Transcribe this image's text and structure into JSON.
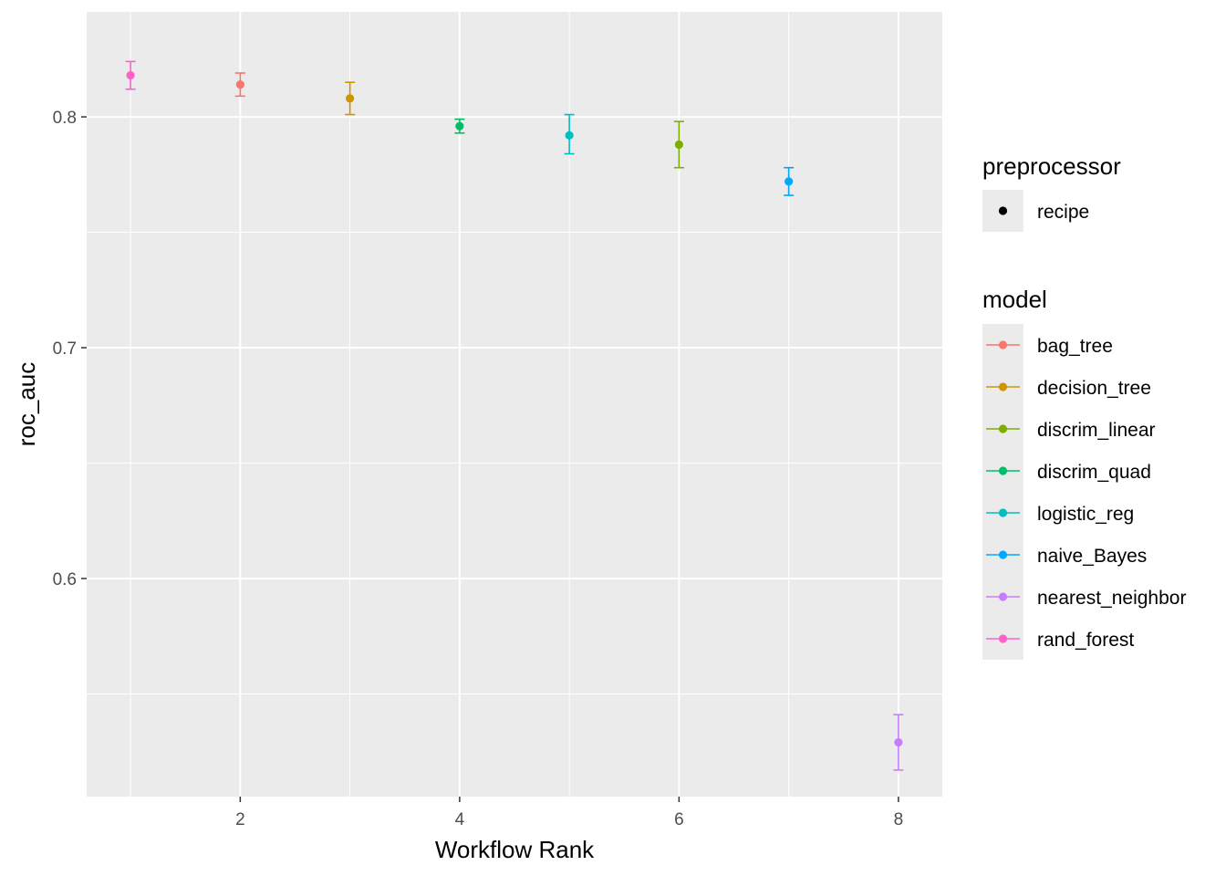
{
  "chart_data": {
    "type": "scatter",
    "xlabel": "Workflow Rank",
    "ylabel": "roc_auc",
    "xlim": [
      0.6,
      8.4
    ],
    "ylim": [
      0.5055,
      0.8455
    ],
    "x_ticks": [
      2,
      4,
      6,
      8
    ],
    "x_tick_labels": [
      "2",
      "4",
      "6",
      "8"
    ],
    "y_ticks": [
      0.6,
      0.7,
      0.8
    ],
    "y_tick_labels": [
      "0.6",
      "0.7",
      "0.8"
    ],
    "grid": true,
    "legend_position": "right",
    "error_bars": true,
    "points": [
      {
        "model": "rand_forest",
        "rank": 1,
        "roc_auc": 0.818,
        "lower": 0.812,
        "upper": 0.824
      },
      {
        "model": "bag_tree",
        "rank": 2,
        "roc_auc": 0.814,
        "lower": 0.809,
        "upper": 0.819
      },
      {
        "model": "decision_tree",
        "rank": 3,
        "roc_auc": 0.808,
        "lower": 0.801,
        "upper": 0.815
      },
      {
        "model": "discrim_quad",
        "rank": 4,
        "roc_auc": 0.796,
        "lower": 0.793,
        "upper": 0.799
      },
      {
        "model": "logistic_reg",
        "rank": 5,
        "roc_auc": 0.792,
        "lower": 0.784,
        "upper": 0.801
      },
      {
        "model": "discrim_linear",
        "rank": 6,
        "roc_auc": 0.788,
        "lower": 0.778,
        "upper": 0.798
      },
      {
        "model": "naive_Bayes",
        "rank": 7,
        "roc_auc": 0.772,
        "lower": 0.766,
        "upper": 0.778
      },
      {
        "model": "nearest_neighbor",
        "rank": 8,
        "roc_auc": 0.529,
        "lower": 0.517,
        "upper": 0.541
      }
    ],
    "legends": [
      {
        "title": "preprocessor",
        "entries": [
          {
            "label": "recipe",
            "color": "#000000"
          }
        ]
      },
      {
        "title": "model",
        "entries": [
          {
            "label": "bag_tree",
            "color": "#F8766D"
          },
          {
            "label": "decision_tree",
            "color": "#CD9600"
          },
          {
            "label": "discrim_linear",
            "color": "#7CAE00"
          },
          {
            "label": "discrim_quad",
            "color": "#00BE67"
          },
          {
            "label": "logistic_reg",
            "color": "#00BFC4"
          },
          {
            "label": "naive_Bayes",
            "color": "#00A9FF"
          },
          {
            "label": "nearest_neighbor",
            "color": "#C77CFF"
          },
          {
            "label": "rand_forest",
            "color": "#FF61CC"
          }
        ]
      }
    ]
  }
}
